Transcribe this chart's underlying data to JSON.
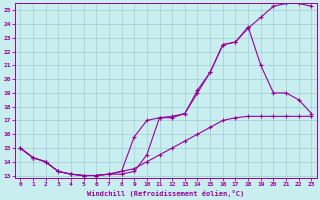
{
  "xlabel": "Windchill (Refroidissement éolien,°C)",
  "bg_color": "#c8eef0",
  "grid_color": "#a0ccd4",
  "line_color": "#990099",
  "xlim_min": -0.4,
  "xlim_max": 23.4,
  "ylim_min": 12.85,
  "ylim_max": 25.5,
  "yticks": [
    13,
    14,
    15,
    16,
    17,
    18,
    19,
    20,
    21,
    22,
    23,
    24,
    25
  ],
  "xticks": [
    0,
    1,
    2,
    3,
    4,
    5,
    6,
    7,
    8,
    9,
    10,
    11,
    12,
    13,
    14,
    15,
    16,
    17,
    18,
    19,
    20,
    21,
    22,
    23
  ],
  "line1_x": [
    0,
    1,
    2,
    3,
    4,
    5,
    6,
    7,
    8,
    9,
    10,
    11,
    12,
    13,
    14,
    15,
    16,
    17,
    18,
    19,
    20,
    21,
    22,
    23
  ],
  "line1_y": [
    15.0,
    14.3,
    14.0,
    13.3,
    13.1,
    13.0,
    13.0,
    13.1,
    13.1,
    13.3,
    14.5,
    17.2,
    17.2,
    17.5,
    19.2,
    20.5,
    22.5,
    22.7,
    23.7,
    24.5,
    25.3,
    25.5,
    25.5,
    25.3
  ],
  "line2_x": [
    0,
    1,
    2,
    3,
    4,
    5,
    6,
    7,
    8,
    9,
    10,
    11,
    12,
    13,
    14,
    15,
    16,
    17,
    18,
    19,
    20,
    21,
    22,
    23
  ],
  "line2_y": [
    15.0,
    14.3,
    14.0,
    13.3,
    13.1,
    13.0,
    13.0,
    13.1,
    13.3,
    15.8,
    17.0,
    17.2,
    17.3,
    17.5,
    19.0,
    20.5,
    22.5,
    22.7,
    23.8,
    21.0,
    19.0,
    19.0,
    18.5,
    17.5
  ],
  "line3_x": [
    0,
    1,
    2,
    3,
    4,
    5,
    6,
    7,
    8,
    9,
    10,
    11,
    12,
    13,
    14,
    15,
    16,
    17,
    18,
    19,
    20,
    21,
    22,
    23
  ],
  "line3_y": [
    15.0,
    14.3,
    14.0,
    13.3,
    13.1,
    13.0,
    13.0,
    13.1,
    13.3,
    13.5,
    14.0,
    14.5,
    15.0,
    15.5,
    16.0,
    16.5,
    17.0,
    17.2,
    17.3,
    17.3,
    17.3,
    17.3,
    17.3,
    17.3
  ]
}
